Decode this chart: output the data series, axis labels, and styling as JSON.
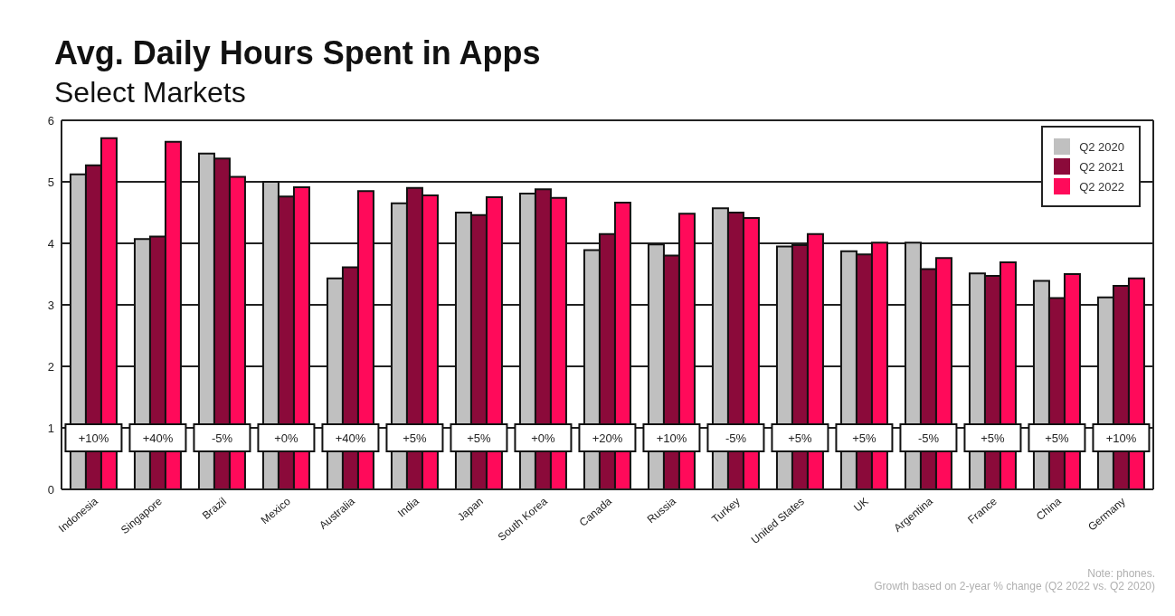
{
  "chart_data": {
    "type": "bar",
    "title": "Avg. Daily Hours Spent in Apps",
    "subtitle": "Select Markets",
    "categories": [
      "Indonesia",
      "Singapore",
      "Brazil",
      "Mexico",
      "Australia",
      "India",
      "Japan",
      "South Korea",
      "Canada",
      "Russia",
      "Turkey",
      "United States",
      "UK",
      "Argentina",
      "France",
      "China",
      "Germany"
    ],
    "series": [
      {
        "name": "Q2 2020",
        "color": "#c0c0c0",
        "values": [
          5.12,
          4.07,
          5.46,
          5.0,
          3.43,
          4.65,
          4.5,
          4.81,
          3.89,
          3.98,
          4.57,
          3.95,
          3.87,
          4.01,
          3.51,
          3.39,
          3.12
        ]
      },
      {
        "name": "Q2 2021",
        "color": "#8b0a3a",
        "values": [
          5.27,
          4.11,
          5.38,
          4.76,
          3.61,
          4.9,
          4.46,
          4.88,
          4.15,
          3.8,
          4.5,
          3.97,
          3.82,
          3.58,
          3.47,
          3.11,
          3.31
        ]
      },
      {
        "name": "Q2 2022",
        "color": "#ff0a5a",
        "values": [
          5.71,
          5.65,
          5.08,
          4.91,
          4.85,
          4.78,
          4.75,
          4.74,
          4.66,
          4.48,
          4.41,
          4.15,
          4.01,
          3.76,
          3.69,
          3.5,
          3.43
        ]
      }
    ],
    "ylim": [
      0,
      6
    ],
    "yticks": [
      0,
      1,
      2,
      3,
      4,
      5,
      6
    ],
    "grid": "y",
    "legend": "top right",
    "annotations": [
      {
        "text": "+10%",
        "x": "Indonesia"
      },
      {
        "text": "+40%",
        "x": "Singapore"
      },
      {
        "text": "-5%",
        "x": "Brazil"
      },
      {
        "text": "+0%",
        "x": "Mexico"
      },
      {
        "text": "+40%",
        "x": "Australia"
      },
      {
        "text": "+5%",
        "x": "India"
      },
      {
        "text": "+5%",
        "x": "Japan"
      },
      {
        "text": "+0%",
        "x": "South Korea"
      },
      {
        "text": "+20%",
        "x": "Canada"
      },
      {
        "text": "+10%",
        "x": "Russia"
      },
      {
        "text": "-5%",
        "x": "Turkey"
      },
      {
        "text": "+5%",
        "x": "United States"
      },
      {
        "text": "+5%",
        "x": "UK"
      },
      {
        "text": "-5%",
        "x": "Argentina"
      },
      {
        "text": "+5%",
        "x": "France"
      },
      {
        "text": "+5%",
        "x": "China"
      },
      {
        "text": "+10%",
        "x": "Germany"
      },
      "Note: phones.",
      "Growth based on 2-year % change (Q2 2022 vs. Q2 2020)"
    ]
  }
}
